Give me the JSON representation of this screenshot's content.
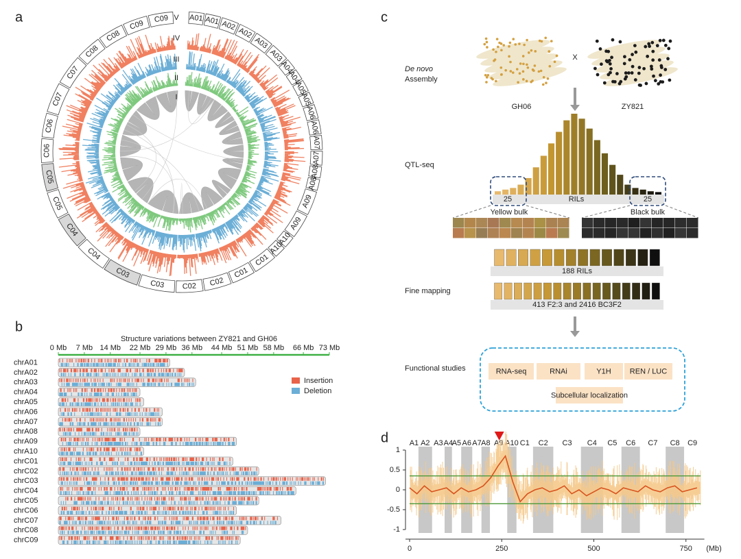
{
  "panel_labels": [
    "a",
    "b",
    "c",
    "d"
  ],
  "circos": {
    "ring_labels": [
      "V",
      "IV",
      "III",
      "II",
      "I"
    ],
    "chromosomes": [
      "A01",
      "A01",
      "A02",
      "A02",
      "A03",
      "A03",
      "A04",
      "A04",
      "A05",
      "A05",
      "A06",
      "A06",
      "A07",
      "A07",
      "A08",
      "A08",
      "A09",
      "A09",
      "A10",
      "A10",
      "C01",
      "C01",
      "C02",
      "C02",
      "C03",
      "C03",
      "C04",
      "C04",
      "C05",
      "C05",
      "C06",
      "C06",
      "C07",
      "C07",
      "C08",
      "C08",
      "C09",
      "C09"
    ]
  },
  "diagram": {
    "de_novo": "De novo",
    "assembly": "Assembly",
    "cross": "X",
    "parent1": "GH06",
    "parent2": "ZY821",
    "qtl_seq": "QTL-seq",
    "bulk_size_left": "25",
    "rils": "RILs",
    "bulk_size_right": "25",
    "yellow_bulk": "Yellow bulk",
    "black_bulk": "Black bulk",
    "ril_count": "188 RILs",
    "fine_mapping": "Fine mapping",
    "populations": "413 F2:3 and 2416 BC3F2",
    "functional_studies": "Functional studies",
    "assays": [
      "RNA-seq",
      "RNAi",
      "Y1H",
      "REN / LUC",
      "Subcellular localization"
    ],
    "rils_distribution": [
      4,
      6,
      8,
      12,
      20,
      33,
      47,
      62,
      76,
      90,
      98,
      92,
      80,
      66,
      50,
      36,
      24,
      12,
      8,
      6,
      4,
      3
    ]
  },
  "chart_data": [
    {
      "type": "hbar",
      "title": "Structure variations between ZY821 and GH06",
      "categories": [
        "chrA01",
        "chrA02",
        "chrA03",
        "chrA04",
        "chrA05",
        "chrA06",
        "chrA07",
        "chrA08",
        "chrA09",
        "chrA10",
        "chrC01",
        "chrC02",
        "chrC03",
        "chrC04",
        "chrC05",
        "chrC06",
        "chrC07",
        "chrC08",
        "chrC09"
      ],
      "values": [
        30,
        34,
        37,
        22,
        23,
        28,
        28,
        22,
        48,
        23,
        47,
        54,
        72,
        64,
        54,
        48,
        60,
        51,
        49
      ],
      "xlim": [
        0,
        73
      ],
      "xticks": [
        {
          "value": 0,
          "label": "0 Mb"
        },
        {
          "value": 7,
          "label": "7 Mb"
        },
        {
          "value": 14,
          "label": "14 Mb"
        },
        {
          "value": 22,
          "label": "22 Mb"
        },
        {
          "value": 29,
          "label": "29 Mb"
        },
        {
          "value": 36,
          "label": "36 Mb"
        },
        {
          "value": 44,
          "label": "44 Mb"
        },
        {
          "value": 51,
          "label": "51 Mb"
        },
        {
          "value": 58,
          "label": "58 Mb"
        },
        {
          "value": 66,
          "label": "66 Mb"
        },
        {
          "value": 73,
          "label": "73 Mb"
        }
      ],
      "series": [
        {
          "name": "Insertion",
          "color": "#e8634a"
        },
        {
          "name": "Deletion",
          "color": "#6baed6"
        }
      ],
      "axis_color": "#3cb043"
    },
    {
      "type": "line",
      "x": [
        0,
        20,
        40,
        60,
        80,
        100,
        120,
        140,
        160,
        180,
        200,
        220,
        240,
        260,
        280,
        300,
        320,
        340,
        360,
        380,
        400,
        420,
        440,
        460,
        480,
        500,
        520,
        540,
        560,
        580,
        600,
        620,
        640,
        660,
        680,
        700,
        720,
        740,
        760,
        780
      ],
      "series": [
        {
          "color": "#d9531e",
          "values": [
            0.05,
            -0.1,
            0.1,
            -0.05,
            0,
            0.05,
            -0.1,
            0.05,
            -0.05,
            0,
            0.1,
            0.3,
            0.6,
            0.85,
            0.2,
            -0.3,
            -0.1,
            0,
            0.05,
            -0.05,
            0,
            0.1,
            -0.1,
            0,
            -0.15,
            -0.05,
            0.05,
            0,
            -0.1,
            0.05,
            0,
            -0.05,
            0.1,
            0,
            -0.05,
            0.05,
            0.1,
            -0.05,
            0,
            0.05
          ]
        }
      ],
      "thresholds": [
        0.35,
        -0.35
      ],
      "threshold_color": "#4d9a3a",
      "band_color": "#f5c98a",
      "xlim": [
        0,
        800
      ],
      "xticks": [
        0,
        250,
        500,
        750
      ],
      "ylim": [
        -1,
        1
      ],
      "yticks": [
        -1,
        -0.5,
        0,
        0.5,
        1
      ],
      "x_label": "(Mb)",
      "chromosome_labels": [
        "A1",
        "A2",
        "A3",
        "A4",
        "A5",
        "A6",
        "A7",
        "A8",
        "A9",
        "A10",
        "C1",
        "C2",
        "C3",
        "C4",
        "C5",
        "C6",
        "C7",
        "C8",
        "C9"
      ],
      "chromosome_bounds": [
        0,
        24,
        61,
        95,
        115,
        140,
        170,
        195,
        218,
        265,
        290,
        335,
        390,
        465,
        525,
        575,
        625,
        695,
        745,
        790
      ],
      "highlight": "A9"
    }
  ]
}
